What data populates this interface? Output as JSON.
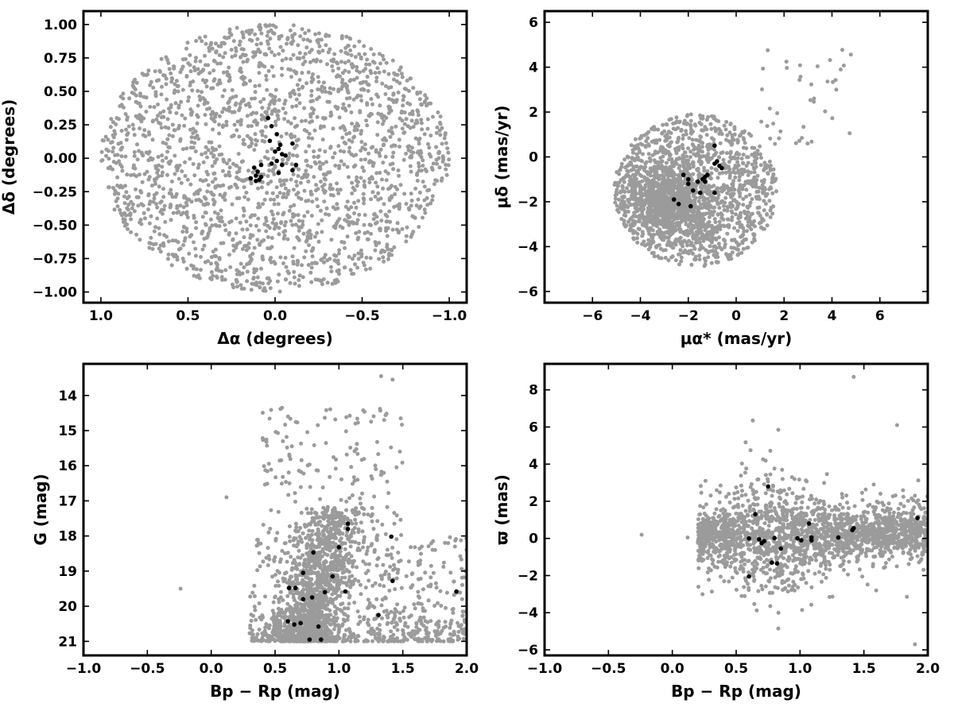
{
  "chart_data": [
    {
      "type": "scatter",
      "panel": "top-left",
      "xlabel": "Δα (degrees)",
      "ylabel": "Δδ (degrees)",
      "xlim": [
        1.1,
        -1.1
      ],
      "ylim": [
        -1.08,
        1.1
      ],
      "xticks": [
        1.0,
        0.5,
        0.0,
        -0.5,
        -1.0
      ],
      "xtick_labels": [
        "1.0",
        "0.5",
        "0.0",
        "−0.5",
        "−1.0"
      ],
      "yticks": [
        -1.0,
        -0.75,
        -0.5,
        -0.25,
        0.0,
        0.25,
        0.5,
        0.75,
        1.0
      ],
      "ytick_labels": [
        "−1.00",
        "−0.75",
        "−0.50",
        "−0.25",
        "0.00",
        "0.25",
        "0.50",
        "0.75",
        "1.00"
      ],
      "grid": false,
      "legend": "none",
      "background_distribution": {
        "description_shape": "uniform disk",
        "center": [
          0.0,
          0.0
        ],
        "radius_x": 1.0,
        "radius_y": 1.0,
        "approx_count": 2100
      },
      "series": [
        {
          "color": "#9b9b9b",
          "role": "field",
          "points": []
        },
        {
          "color": "#000000",
          "role": "members",
          "points": [
            [
              0.04,
              0.3
            ],
            [
              0.02,
              0.24
            ],
            [
              -0.01,
              0.18
            ],
            [
              0.03,
              0.13
            ],
            [
              -0.03,
              0.1
            ],
            [
              -0.1,
              0.11
            ],
            [
              -0.02,
              0.07
            ],
            [
              0.0,
              0.05
            ],
            [
              -0.04,
              0.03
            ],
            [
              -0.06,
              0.02
            ],
            [
              -0.01,
              -0.02
            ],
            [
              0.02,
              -0.04
            ],
            [
              -0.04,
              -0.05
            ],
            [
              0.08,
              -0.05
            ],
            [
              -0.12,
              -0.05
            ],
            [
              0.12,
              -0.07
            ],
            [
              -0.1,
              -0.09
            ],
            [
              0.1,
              -0.1
            ],
            [
              0.11,
              -0.13
            ],
            [
              0.08,
              -0.14
            ],
            [
              0.14,
              -0.15
            ],
            [
              0.09,
              -0.16
            ],
            [
              0.11,
              -0.17
            ],
            [
              -0.02,
              -0.11
            ]
          ]
        }
      ]
    },
    {
      "type": "scatter",
      "panel": "top-right",
      "xlabel": "μα* (mas/yr)",
      "ylabel": "μδ (mas/yr)",
      "xlim": [
        -8,
        8
      ],
      "ylim": [
        -6.5,
        6.5
      ],
      "xticks": [
        -6,
        -4,
        -2,
        0,
        2,
        4,
        6
      ],
      "xtick_labels": [
        "−6",
        "−4",
        "−2",
        "0",
        "2",
        "4",
        "6"
      ],
      "yticks": [
        -6,
        -4,
        -2,
        0,
        2,
        4,
        6
      ],
      "ytick_labels": [
        "−6",
        "−4",
        "−2",
        "0",
        "2",
        "4",
        "6"
      ],
      "grid": false,
      "legend": "none",
      "background_distribution": {
        "description_shape": "clipped disk, dense toward lower-left",
        "center": [
          -1.7,
          -1.5
        ],
        "radius": 3.4,
        "dense_core": [
          -2.8,
          -2.0
        ],
        "approx_count": 2100
      },
      "series": [
        {
          "color": "#9b9b9b",
          "role": "field",
          "points": []
        },
        {
          "color": "#000000",
          "role": "members",
          "points": [
            [
              -0.9,
              0.5
            ],
            [
              -0.8,
              -0.2
            ],
            [
              -0.7,
              -0.4
            ],
            [
              -0.6,
              -0.5
            ],
            [
              -0.9,
              -0.3
            ],
            [
              -1.2,
              -0.8
            ],
            [
              -1.3,
              -0.9
            ],
            [
              -1.4,
              -1.0
            ],
            [
              -1.3,
              -1.1
            ],
            [
              -1.6,
              -1.1
            ],
            [
              -2.0,
              -1.2
            ],
            [
              -2.2,
              -0.8
            ],
            [
              -2.0,
              -1.0
            ],
            [
              -1.5,
              -1.6
            ],
            [
              -1.8,
              -1.5
            ],
            [
              -0.9,
              -1.6
            ],
            [
              -2.6,
              -1.9
            ],
            [
              -2.4,
              -2.1
            ],
            [
              -1.9,
              -2.2
            ]
          ]
        }
      ]
    },
    {
      "type": "scatter",
      "panel": "bottom-left",
      "xlabel": "Bp − Rp (mag)",
      "ylabel": "G (mag)",
      "xlim": [
        -1.0,
        2.0
      ],
      "ylim": [
        21.4,
        13.1
      ],
      "xticks": [
        -1.0,
        -0.5,
        0.0,
        0.5,
        1.0,
        1.5,
        2.0
      ],
      "xtick_labels": [
        "−1.0",
        "−0.5",
        "0.0",
        "0.5",
        "1.0",
        "1.5",
        "2.0"
      ],
      "yticks": [
        14,
        15,
        16,
        17,
        18,
        19,
        20,
        21
      ],
      "ytick_labels": [
        "14",
        "15",
        "16",
        "17",
        "18",
        "19",
        "20",
        "21"
      ],
      "grid": false,
      "legend": "none",
      "y_inverted": true,
      "background_distribution": {
        "description_shape": "color-magnitude diagram: main sequence band and faint field",
        "approx_count": 2100
      },
      "series": [
        {
          "color": "#9b9b9b",
          "role": "field",
          "points": []
        },
        {
          "color": "#000000",
          "role": "members",
          "points": [
            [
              0.77,
              20.95
            ],
            [
              0.86,
              20.95
            ],
            [
              0.65,
              20.52
            ],
            [
              0.7,
              20.48
            ],
            [
              0.6,
              20.43
            ],
            [
              0.84,
              20.58
            ],
            [
              1.31,
              20.25
            ],
            [
              0.72,
              19.8
            ],
            [
              0.79,
              19.75
            ],
            [
              0.89,
              19.6
            ],
            [
              0.61,
              19.48
            ],
            [
              0.66,
              19.48
            ],
            [
              1.05,
              19.58
            ],
            [
              1.42,
              19.28
            ],
            [
              0.95,
              19.15
            ],
            [
              0.72,
              19.05
            ],
            [
              0.8,
              18.47
            ],
            [
              1.0,
              18.32
            ],
            [
              1.41,
              18.02
            ],
            [
              1.07,
              17.8
            ],
            [
              1.07,
              17.65
            ],
            [
              1.92,
              19.58
            ]
          ]
        }
      ]
    },
    {
      "type": "scatter",
      "panel": "bottom-right",
      "xlabel": "Bp − Rp (mag)",
      "ylabel": "ϖ (mas)",
      "xlim": [
        -1.0,
        2.0
      ],
      "ylim": [
        -6.3,
        9.4
      ],
      "xticks": [
        -1.0,
        -0.5,
        0.0,
        0.5,
        1.0,
        1.5,
        2.0
      ],
      "xtick_labels": [
        "−1.0",
        "−0.5",
        "0.0",
        "0.5",
        "1.0",
        "1.5",
        "2.0"
      ],
      "yticks": [
        -6,
        -4,
        -2,
        0,
        2,
        4,
        6,
        8
      ],
      "ytick_labels": [
        "−6",
        "−4",
        "−2",
        "0",
        "2",
        "4",
        "6",
        "8"
      ],
      "grid": false,
      "legend": "none",
      "background_distribution": {
        "description_shape": "horizontal band centered near zero parallax, widest near Bp−Rp 0.8",
        "approx_count": 2100
      },
      "series": [
        {
          "color": "#9b9b9b",
          "role": "field",
          "points": []
        },
        {
          "color": "#000000",
          "role": "members",
          "points": [
            [
              0.75,
              2.8
            ],
            [
              0.65,
              1.3
            ],
            [
              1.42,
              0.55
            ],
            [
              1.41,
              0.45
            ],
            [
              1.92,
              1.1
            ],
            [
              1.07,
              0.8
            ],
            [
              1.09,
              0.05
            ],
            [
              1.09,
              -0.1
            ],
            [
              1.3,
              0.05
            ],
            [
              0.8,
              0.02
            ],
            [
              0.6,
              0.0
            ],
            [
              0.68,
              -0.05
            ],
            [
              0.72,
              -0.15
            ],
            [
              0.7,
              -0.25
            ],
            [
              1.01,
              -0.1
            ],
            [
              0.98,
              0.0
            ],
            [
              0.85,
              -0.55
            ],
            [
              0.78,
              -1.3
            ],
            [
              0.82,
              -1.35
            ],
            [
              0.6,
              -2.05
            ]
          ]
        }
      ]
    }
  ],
  "colors": {
    "field": "#9b9b9b",
    "members": "#000000",
    "frame": "#000000",
    "background": "#ffffff"
  }
}
